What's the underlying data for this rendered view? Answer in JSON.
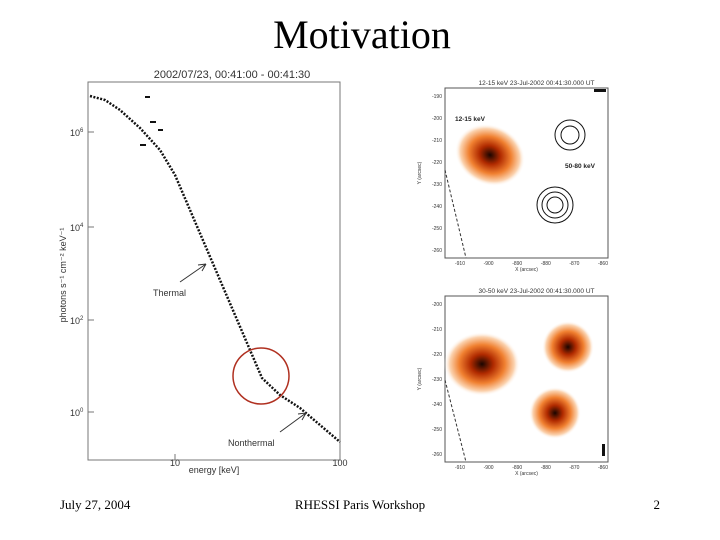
{
  "title": "Motivation",
  "footer": {
    "date": "July 27, 2004",
    "event": "RHESSI Paris Workshop",
    "page": "2"
  },
  "spectrum": {
    "title": "2002/07/23, 00:41:00 - 00:41:30",
    "x_label": "energy [keV]",
    "y_label": "photons s⁻¹ cm⁻² keV⁻¹",
    "x_ticks": [
      "10",
      "100"
    ],
    "y_ticks": [
      {
        "base": "10",
        "exp": "6"
      },
      {
        "base": "10",
        "exp": "4"
      },
      {
        "base": "10",
        "exp": "2"
      },
      {
        "base": "10",
        "exp": "0"
      }
    ],
    "annotations": [
      "Thermal",
      "Nonthermal"
    ]
  },
  "images": [
    {
      "title": "12-15 keV 23-Jul-2002 00:41:30.000 UT",
      "labels": [
        "12-15 keV",
        "50-80 keV"
      ],
      "y_axis": "Y (arcsec)",
      "x_axis": "X (arcsec)",
      "y_ticks": [
        "-190",
        "-200",
        "-210",
        "-220",
        "-230",
        "-240",
        "-250",
        "-260"
      ],
      "x_ticks": [
        "-910",
        "-900",
        "-890",
        "-880",
        "-870",
        "-860"
      ]
    },
    {
      "title": "30-50 keV 23-Jul-2002 00:41:30.000 UT",
      "labels": [],
      "y_axis": "Y (arcsec)",
      "x_axis": "X (arcsec)",
      "y_ticks": [
        "-200",
        "-210",
        "-220",
        "-230",
        "-240",
        "-250",
        "-260"
      ],
      "x_ticks": [
        "-910",
        "-900",
        "-890",
        "-880",
        "-870",
        "-860"
      ]
    }
  ]
}
